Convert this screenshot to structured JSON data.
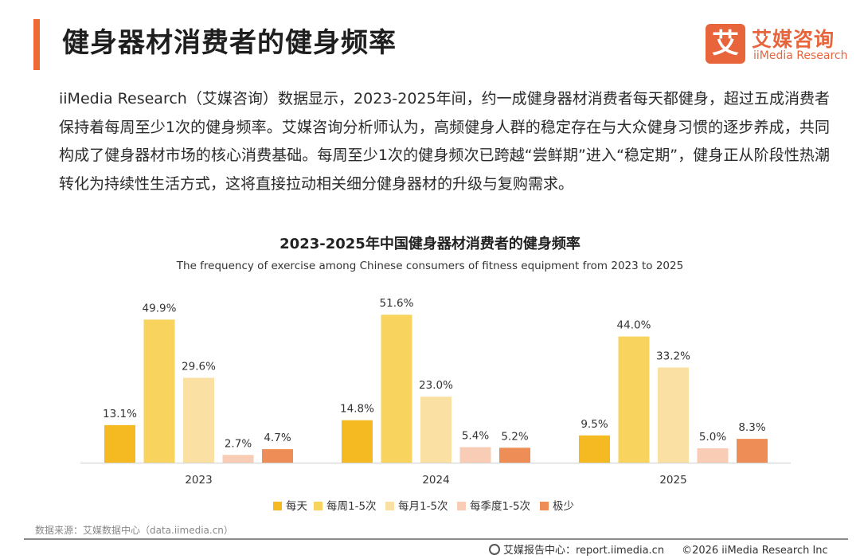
{
  "header": {
    "title": "健身器材消费者的健身频率",
    "logo": {
      "mark": "艾",
      "name_cn": "艾媒咨询",
      "name_en": "iiMedia Research"
    }
  },
  "intro_text": "iiMedia Research（艾媒咨询）数据显示，2023-2025年间，约一成健身器材消费者每天都健身，超过五成消费者保持着每周至少1次的健身频率。艾媒咨询分析师认为，高频健身人群的稳定存在与大众健身习惯的逐步养成，共同构成了健身器材市场的核心消费基础。每周至少1次的健身频次已跨越“尝鲜期”进入“稳定期”，健身正从阶段性热潮转化为持续性生活方式，这将直接拉动相关细分健身器材的升级与复购需求。",
  "chart_data": {
    "type": "bar",
    "title": "2023-2025年中国健身器材消费者的健身频率",
    "subtitle": "The frequency of exercise among Chinese consumers of fitness equipment from 2023 to 2025",
    "categories": [
      "2023",
      "2024",
      "2025"
    ],
    "unit": "%",
    "legend_position": "bottom",
    "grid": false,
    "series": [
      {
        "name": "每天",
        "color": "#f5b921",
        "values": [
          13.1,
          14.8,
          9.5
        ]
      },
      {
        "name": "每周1-5次",
        "color": "#f8d35e",
        "values": [
          49.9,
          51.6,
          44.0
        ]
      },
      {
        "name": "每月1-5次",
        "color": "#fae0a3",
        "values": [
          29.6,
          23.0,
          33.2
        ]
      },
      {
        "name": "每季度1-5次",
        "color": "#f9cdb5",
        "values": [
          2.7,
          5.4,
          5.0
        ]
      },
      {
        "name": "极少",
        "color": "#ee8d55",
        "values": [
          4.7,
          5.2,
          8.3
        ]
      }
    ]
  },
  "source_text": "数据来源：艾媒数据中心（data.iimedia.cn）",
  "footer": {
    "center": "艾媒报告中心：report.iimedia.cn",
    "copyright": "©2026  iiMedia Research  Inc"
  }
}
